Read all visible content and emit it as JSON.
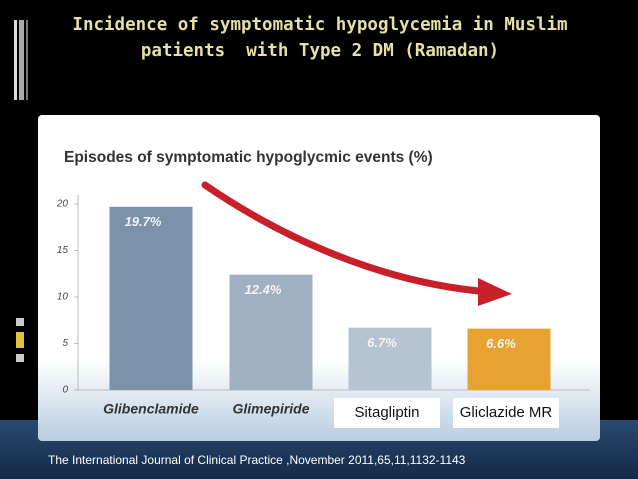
{
  "chart_data": {
    "type": "bar",
    "title": "Incidence of symptomatic hypoglycemia in Muslim patients  with Type 2 DM (Ramadan)",
    "subtitle": "Episodes of symptomatic hypoglycmic events (%)",
    "categories": [
      "Glibenclamide",
      "Glimepiride",
      "Sitagliptin",
      "Gliclazide MR"
    ],
    "values": [
      19.7,
      12.4,
      6.7,
      6.6
    ],
    "value_labels": [
      "19.7%",
      "12.4%",
      "6.7%",
      "6.6%"
    ],
    "colors": [
      "#7a92aa",
      "#9fb0c2",
      "#b6c3d1",
      "#e8a232"
    ],
    "ylim": [
      0,
      20
    ],
    "yticks": [
      0,
      5,
      10,
      15,
      20
    ],
    "grid": false
  },
  "source": "The International Journal of Clinical Practice ,November 2011,65,11,1132-1143"
}
